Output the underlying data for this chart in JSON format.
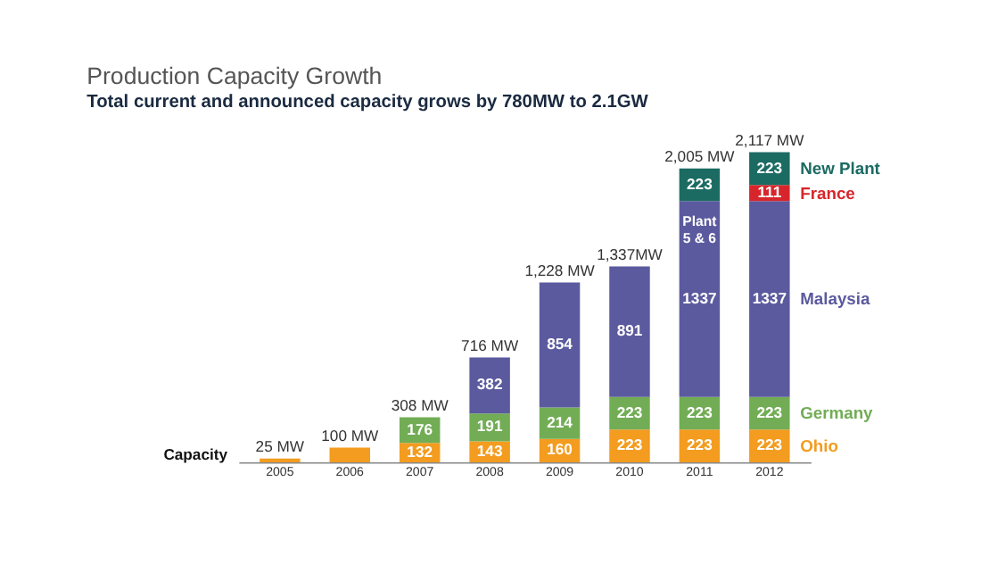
{
  "chart_data": {
    "type": "bar",
    "stacked": true,
    "title": "Production Capacity Growth",
    "subtitle": "Total current and announced capacity grows by 780MW to 2.1GW",
    "categories": [
      "2005",
      "2006",
      "2007",
      "2008",
      "2009",
      "2010",
      "2011",
      "2012"
    ],
    "series": [
      {
        "name": "Ohio",
        "color": "#f39c1f",
        "values": [
          25,
          100,
          132,
          143,
          160,
          223,
          223,
          223
        ],
        "value_labels": [
          null,
          null,
          "132",
          "143",
          "160",
          "223",
          "223",
          "223"
        ]
      },
      {
        "name": "Germany",
        "color": "#72ad55",
        "values": [
          null,
          null,
          176,
          191,
          214,
          223,
          223,
          223
        ],
        "value_labels": [
          null,
          null,
          "176",
          "191",
          "214",
          "223",
          "223",
          "223"
        ]
      },
      {
        "name": "Malaysia",
        "color": "#5b5a9e",
        "values": [
          null,
          null,
          null,
          382,
          854,
          891,
          1337,
          1337
        ],
        "value_labels": [
          null,
          null,
          null,
          "382",
          "854",
          "891",
          "1337",
          "1337"
        ]
      },
      {
        "name": "France",
        "color": "#d7262b",
        "values": [
          null,
          null,
          null,
          null,
          null,
          null,
          null,
          111
        ],
        "value_labels": [
          null,
          null,
          null,
          null,
          null,
          null,
          null,
          "111"
        ]
      },
      {
        "name": "New Plant",
        "color": "#1c6b63",
        "values": [
          null,
          null,
          null,
          null,
          null,
          null,
          223,
          223
        ],
        "value_labels": [
          null,
          null,
          null,
          null,
          null,
          null,
          "223",
          "223"
        ]
      }
    ],
    "totals": [
      "25 MW",
      "100 MW",
      "308 MW",
      "716 MW",
      "1,228 MW",
      "1,337MW",
      "2,005 MW",
      "2,117 MW"
    ],
    "annotations": [
      "Capacity",
      "Plant 5 & 6"
    ],
    "legend": "right",
    "grid": false,
    "tick_labels": "x"
  }
}
